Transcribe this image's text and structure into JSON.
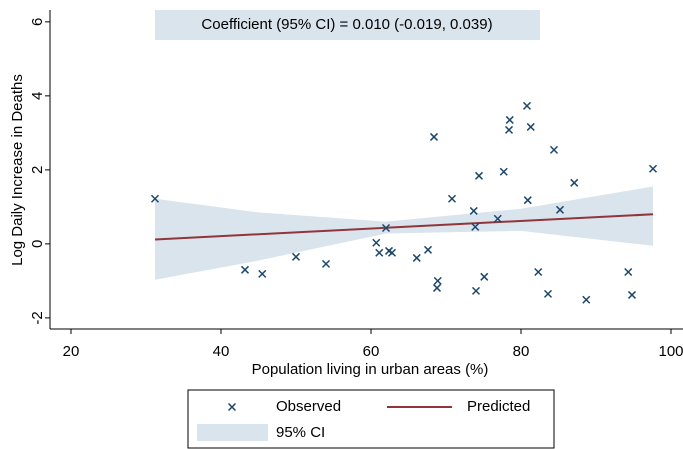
{
  "chart_data": {
    "type": "scatter",
    "annotation": "Coefficient (95% CI) = 0.010 (-0.019, 0.039)",
    "x_label": "Population living in urban areas (%)",
    "y_label": "Log Daily Increase in Deaths",
    "xlim": [
      17.2,
      101.6
    ],
    "xticks": [
      20,
      40,
      60,
      80,
      100
    ],
    "ylim": [
      -2.3,
      6.32
    ],
    "yticks": [
      -2,
      0,
      2,
      4,
      6
    ],
    "grid": false,
    "legend_position": "bottom",
    "series": [
      {
        "name": "Observed",
        "type": "scatter",
        "color": "#1a476f",
        "x": [
          31.2,
          43.2,
          45.5,
          50,
          54,
          60.7,
          61.1,
          62,
          62.4,
          62.8,
          66.1,
          67.6,
          68.4,
          68.9,
          68.8,
          70.8,
          73.7,
          73.9,
          74,
          74.4,
          75.1,
          76.9,
          77.7,
          78.5,
          78.4,
          80.8,
          80.9,
          81.3,
          82.3,
          83.6,
          84.4,
          85.2,
          87.1,
          88.7,
          94.3,
          94.8,
          97.6
        ],
        "values": [
          1.22,
          -0.7,
          -0.81,
          -0.35,
          -0.54,
          0.03,
          -0.24,
          0.43,
          -0.19,
          -0.24,
          -0.38,
          -0.16,
          2.89,
          -1.0,
          -1.19,
          1.22,
          0.89,
          0.46,
          -1.27,
          1.84,
          -0.89,
          0.68,
          1.95,
          3.35,
          3.08,
          3.73,
          1.18,
          3.16,
          -0.76,
          -1.35,
          2.54,
          0.92,
          1.65,
          -1.51,
          -0.76,
          -1.38,
          2.03
        ]
      },
      {
        "name": "Predicted",
        "type": "line",
        "color": "#90353b",
        "x": [
          31.2,
          97.6
        ],
        "values": [
          0.12,
          0.8
        ]
      },
      {
        "name": "95% CI",
        "type": "band",
        "color": "#dae4ec",
        "x": [
          31.2,
          45,
          62,
          80,
          97.6
        ],
        "upper": [
          1.22,
          0.85,
          0.6,
          0.95,
          1.55
        ],
        "lower": [
          -0.97,
          -0.45,
          0.28,
          0.35,
          -0.05
        ]
      }
    ]
  }
}
